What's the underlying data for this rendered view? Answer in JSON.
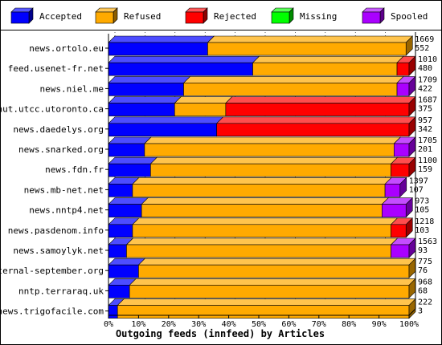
{
  "chart_data": {
    "type": "bar",
    "orientation": "horizontal",
    "stacked": true,
    "style": "3d-stacked-percent",
    "xlabel": "Outgoing feeds (innfeed) by Articles",
    "xlim": [
      0,
      100
    ],
    "x_ticks": [
      "0%",
      "10%",
      "20%",
      "30%",
      "40%",
      "50%",
      "60%",
      "70%",
      "80%",
      "90%",
      "100%"
    ],
    "legend_position": "top",
    "series": [
      {
        "name": "Accepted",
        "color": "#0000ff"
      },
      {
        "name": "Refused",
        "color": "#ffaa00"
      },
      {
        "name": "Rejected",
        "color": "#ff0000"
      },
      {
        "name": "Missing",
        "color": "#00ff00"
      },
      {
        "name": "Spooled",
        "color": "#aa00ff"
      }
    ],
    "categories": [
      "news.ortolo.eu",
      "feed.usenet-fr.net",
      "news.niel.me",
      "nut.utcc.utoronto.ca",
      "news.daedelys.org",
      "news.snarked.org",
      "news.fdn.fr",
      "news.mb-net.net",
      "news.nntp4.net",
      "news.pasdenom.info",
      "news.samoylyk.net",
      "eternal-september.org",
      "nntp.terraraq.uk",
      "news.trigofacile.com"
    ],
    "labels_top": [
      "1669",
      "1010",
      "1709",
      "1687",
      "957",
      "1705",
      "1100",
      "1397",
      "973",
      "1218",
      "1563",
      "775",
      "968",
      "222"
    ],
    "labels_bottom": [
      "552",
      "480",
      "422",
      "375",
      "342",
      "201",
      "159",
      "107",
      "105",
      "103",
      "93",
      "76",
      "68",
      "3"
    ],
    "rows": [
      {
        "category": "news.ortolo.eu",
        "values": [
          33,
          66,
          0,
          0,
          0
        ]
      },
      {
        "category": "feed.usenet-fr.net",
        "values": [
          48,
          48,
          4,
          0,
          0
        ]
      },
      {
        "category": "news.niel.me",
        "values": [
          25,
          71,
          0,
          0,
          4
        ]
      },
      {
        "category": "nut.utcc.utoronto.ca",
        "values": [
          22,
          17,
          61,
          0,
          0
        ]
      },
      {
        "category": "news.daedelys.org",
        "values": [
          36,
          0,
          64,
          0,
          0
        ]
      },
      {
        "category": "news.snarked.org",
        "values": [
          12,
          83,
          0,
          0,
          5
        ]
      },
      {
        "category": "news.fdn.fr",
        "values": [
          14,
          80,
          6,
          0,
          0
        ]
      },
      {
        "category": "news.mb-net.net",
        "values": [
          8,
          84,
          0,
          0,
          5
        ]
      },
      {
        "category": "news.nntp4.net",
        "values": [
          11,
          80,
          0,
          0,
          8
        ]
      },
      {
        "category": "news.pasdenom.info",
        "values": [
          8,
          86,
          5,
          0,
          0
        ]
      },
      {
        "category": "news.samoylyk.net",
        "values": [
          6,
          88,
          0,
          0,
          6
        ]
      },
      {
        "category": "eternal-september.org",
        "values": [
          10,
          90,
          0,
          0,
          0
        ]
      },
      {
        "category": "nntp.terraraq.uk",
        "values": [
          7,
          93,
          0,
          0,
          0
        ]
      },
      {
        "category": "news.trigofacile.com",
        "values": [
          3,
          97,
          0,
          0,
          0
        ]
      }
    ],
    "grid": "vertical-dashed"
  }
}
